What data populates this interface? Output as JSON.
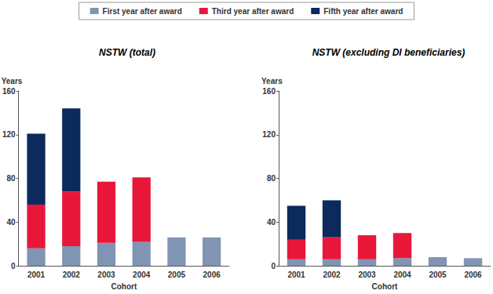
{
  "chart_data": [
    {
      "type": "bar",
      "title": "NSTW (total)",
      "y_label": "Years",
      "x_label": "Cohort",
      "categories": [
        "2001",
        "2002",
        "2003",
        "2004",
        "2005",
        "2006"
      ],
      "series": [
        {
          "name": "First year after award",
          "color": "#8094b4",
          "values": [
            16,
            18,
            21,
            22,
            26,
            26
          ]
        },
        {
          "name": "Third year after award",
          "color": "#e8173a",
          "values": [
            40,
            50,
            56,
            59,
            null,
            null
          ]
        },
        {
          "name": "Fifth year after award",
          "color": "#0c2a5c",
          "values": [
            65,
            76,
            null,
            null,
            null,
            null
          ]
        }
      ],
      "ylim": [
        0,
        160
      ],
      "yticks": [
        0,
        40,
        80,
        120,
        160
      ],
      "stacked": true,
      "grid": false,
      "legend": "top"
    },
    {
      "type": "bar",
      "title": "NSTW (excluding DI beneficiaries)",
      "y_label": "Years",
      "x_label": "Cohort",
      "categories": [
        "2001",
        "2002",
        "2003",
        "2004",
        "2005",
        "2006"
      ],
      "series": [
        {
          "name": "First year after award",
          "color": "#8094b4",
          "values": [
            6,
            6,
            6,
            7,
            8,
            7
          ]
        },
        {
          "name": "Third year after award",
          "color": "#e8173a",
          "values": [
            18,
            20,
            22,
            23,
            null,
            null
          ]
        },
        {
          "name": "Fifth year after award",
          "color": "#0c2a5c",
          "values": [
            31,
            34,
            null,
            null,
            null,
            null
          ]
        }
      ],
      "ylim": [
        0,
        160
      ],
      "yticks": [
        0,
        40,
        80,
        120,
        160
      ],
      "stacked": true,
      "grid": false,
      "legend": "top"
    }
  ]
}
